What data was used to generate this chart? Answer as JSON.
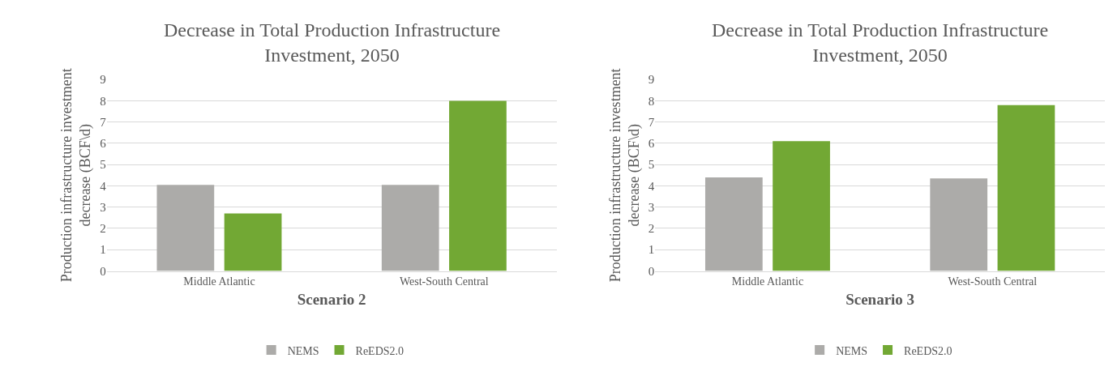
{
  "chart_data": [
    {
      "type": "bar",
      "title": "Decrease in Total Production Infrastructure Investment, 2050",
      "xlabel": "Scenario 2",
      "ylabel": "Production infrastructure investment decrease (BCF\\d)",
      "categories": [
        "Middle Atlantic",
        "West-South Central"
      ],
      "series": [
        {
          "name": "NEMS",
          "color": "#acaba9",
          "values": [
            4.05,
            4.05
          ]
        },
        {
          "name": "ReEDS2.0",
          "color": "#72a834",
          "values": [
            2.7,
            8.0
          ]
        }
      ],
      "ylim": [
        0,
        9
      ],
      "yticks": [
        0,
        1,
        2,
        3,
        4,
        5,
        6,
        7,
        8,
        9
      ],
      "grid": "y",
      "legend": "bottom"
    },
    {
      "type": "bar",
      "title": "Decrease in Total Production Infrastructure Investment, 2050",
      "xlabel": "Scenario 3",
      "ylabel": "Production infrastructure investment decrease (BCF\\d)",
      "categories": [
        "Middle Atlantic",
        "West-South Central"
      ],
      "series": [
        {
          "name": "NEMS",
          "color": "#acaba9",
          "values": [
            4.4,
            4.35
          ]
        },
        {
          "name": "ReEDS2.0",
          "color": "#72a834",
          "values": [
            6.1,
            7.8
          ]
        }
      ],
      "ylim": [
        0,
        9
      ],
      "yticks": [
        0,
        1,
        2,
        3,
        4,
        5,
        6,
        7,
        8,
        9
      ],
      "grid": "y",
      "legend": "bottom"
    }
  ]
}
